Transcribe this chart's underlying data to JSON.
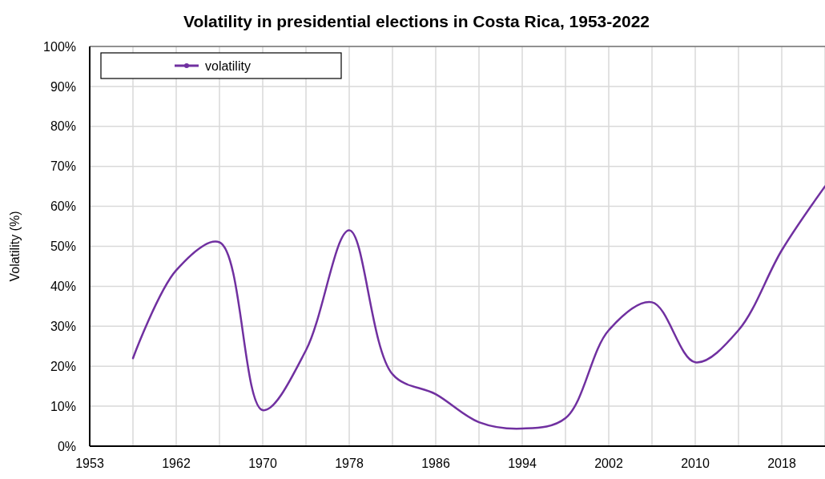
{
  "chart_data": {
    "type": "line",
    "title": "Volatility in presidential elections in Costa Rica, 1953-2022",
    "ylabel": "Volatility (%)",
    "categories": [
      "1953",
      null,
      "1962",
      null,
      "1970",
      null,
      "1978",
      null,
      "1986",
      null,
      "1994",
      null,
      "2002",
      null,
      "2010",
      null,
      "2018",
      null
    ],
    "series": [
      {
        "name": "volatility",
        "color": "#7030a0",
        "values": [
          null,
          22,
          44,
          51,
          9,
          24,
          54,
          18,
          13,
          6,
          4.4,
          7,
          29,
          36,
          21,
          29,
          49,
          65
        ]
      }
    ],
    "ylim": [
      0,
      100
    ],
    "yticks": [
      {
        "value": 0,
        "label": "0%"
      },
      {
        "value": 10,
        "label": "10%"
      },
      {
        "value": 20,
        "label": "20%"
      },
      {
        "value": 30,
        "label": "30%"
      },
      {
        "value": 40,
        "label": "40%"
      },
      {
        "value": 50,
        "label": "50%"
      },
      {
        "value": 60,
        "label": "60%"
      },
      {
        "value": 70,
        "label": "70%"
      },
      {
        "value": 80,
        "label": "80%"
      },
      {
        "value": 90,
        "label": "90%"
      },
      {
        "value": 100,
        "label": "100%"
      }
    ],
    "grid": true,
    "legend": "top left"
  }
}
